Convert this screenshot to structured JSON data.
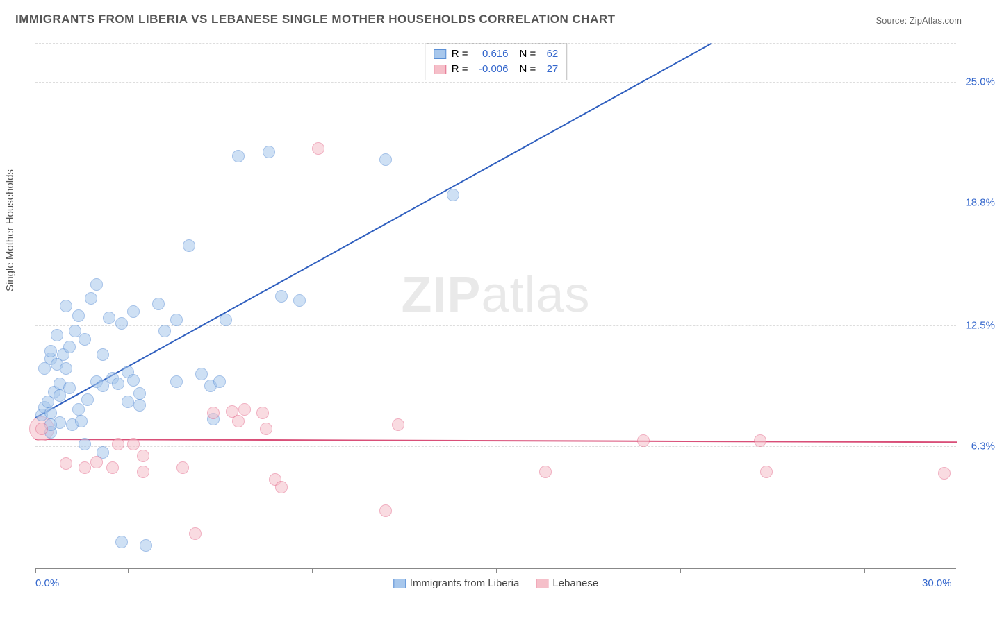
{
  "title": "IMMIGRANTS FROM LIBERIA VS LEBANESE SINGLE MOTHER HOUSEHOLDS CORRELATION CHART",
  "source_prefix": "Source: ",
  "source_name": "ZipAtlas.com",
  "watermark_a": "ZIP",
  "watermark_b": "atlas",
  "chart": {
    "type": "scatter",
    "ylabel": "Single Mother Households",
    "xlim": [
      0,
      30
    ],
    "ylim": [
      0,
      27
    ],
    "xticks_minor": [
      0,
      3,
      6,
      9,
      12,
      15,
      18,
      21,
      24,
      27,
      30
    ],
    "xtick_labels": [
      {
        "x": 0,
        "label": "0.0%"
      },
      {
        "x": 30,
        "label": "30.0%"
      }
    ],
    "ytick_labels": [
      {
        "y": 6.3,
        "label": "6.3%"
      },
      {
        "y": 12.5,
        "label": "12.5%"
      },
      {
        "y": 18.8,
        "label": "18.8%"
      },
      {
        "y": 25.0,
        "label": "25.0%"
      }
    ],
    "grid_y": [
      6.3,
      12.5,
      18.8,
      25.0,
      27
    ],
    "background_color": "#ffffff",
    "grid_color": "#dddddd",
    "series": [
      {
        "name": "Immigrants from Liberia",
        "color_fill": "#a7c7ec",
        "color_stroke": "#5a8fd6",
        "fill_opacity": 0.55,
        "marker_radius": 9,
        "r_label": "R =",
        "r_value": "0.616",
        "n_label": "N =",
        "n_value": "62",
        "trend": {
          "x1": 0,
          "y1": 7.8,
          "x2": 22,
          "y2": 27,
          "color": "#2f5fbf",
          "width": 2
        },
        "points": [
          [
            0.2,
            7.9
          ],
          [
            0.3,
            8.3
          ],
          [
            0.5,
            8.0
          ],
          [
            0.4,
            8.6
          ],
          [
            0.6,
            9.1
          ],
          [
            0.8,
            8.9
          ],
          [
            0.3,
            10.3
          ],
          [
            0.5,
            10.8
          ],
          [
            0.7,
            10.5
          ],
          [
            0.9,
            11.0
          ],
          [
            1.0,
            10.3
          ],
          [
            0.5,
            7.0
          ],
          [
            0.8,
            7.5
          ],
          [
            1.2,
            7.4
          ],
          [
            1.5,
            7.6
          ],
          [
            1.4,
            8.2
          ],
          [
            1.7,
            8.7
          ],
          [
            1.1,
            11.4
          ],
          [
            1.3,
            12.2
          ],
          [
            1.6,
            11.8
          ],
          [
            2.0,
            9.6
          ],
          [
            2.2,
            9.4
          ],
          [
            2.5,
            9.8
          ],
          [
            1.8,
            13.9
          ],
          [
            2.0,
            14.6
          ],
          [
            2.7,
            9.5
          ],
          [
            3.0,
            10.1
          ],
          [
            3.2,
            9.7
          ],
          [
            3.4,
            9.0
          ],
          [
            2.4,
            12.9
          ],
          [
            2.8,
            12.6
          ],
          [
            3.2,
            13.2
          ],
          [
            4.0,
            13.6
          ],
          [
            4.2,
            12.2
          ],
          [
            3.0,
            8.6
          ],
          [
            3.4,
            8.4
          ],
          [
            4.6,
            9.6
          ],
          [
            5.4,
            10.0
          ],
          [
            5.7,
            9.4
          ],
          [
            6.0,
            9.6
          ],
          [
            4.6,
            12.8
          ],
          [
            5.8,
            7.7
          ],
          [
            6.2,
            12.8
          ],
          [
            2.8,
            1.4
          ],
          [
            3.6,
            1.2
          ],
          [
            5.0,
            16.6
          ],
          [
            6.6,
            21.2
          ],
          [
            7.6,
            21.4
          ],
          [
            8.0,
            14.0
          ],
          [
            8.6,
            13.8
          ],
          [
            11.4,
            21.0
          ],
          [
            13.6,
            19.2
          ],
          [
            0.5,
            7.4
          ],
          [
            0.8,
            9.5
          ],
          [
            1.1,
            9.3
          ],
          [
            1.4,
            13.0
          ],
          [
            2.2,
            11.0
          ],
          [
            0.5,
            11.2
          ],
          [
            0.7,
            12.0
          ],
          [
            1.0,
            13.5
          ],
          [
            1.6,
            6.4
          ],
          [
            2.2,
            6.0
          ]
        ]
      },
      {
        "name": "Lebanese",
        "color_fill": "#f5bfc9",
        "color_stroke": "#e56f8f",
        "fill_opacity": 0.55,
        "marker_radius": 9,
        "r_label": "R =",
        "r_value": "-0.006",
        "n_label": "N =",
        "n_value": "27",
        "trend": {
          "x1": 0,
          "y1": 6.7,
          "x2": 30,
          "y2": 6.55,
          "color": "#d94f78",
          "width": 2
        },
        "points": [
          [
            0.2,
            7.2
          ],
          [
            1.0,
            5.4
          ],
          [
            1.6,
            5.2
          ],
          [
            2.0,
            5.5
          ],
          [
            2.5,
            5.2
          ],
          [
            2.7,
            6.4
          ],
          [
            3.2,
            6.4
          ],
          [
            3.5,
            5.8
          ],
          [
            3.5,
            5.0
          ],
          [
            4.8,
            5.2
          ],
          [
            5.2,
            1.8
          ],
          [
            5.8,
            8.0
          ],
          [
            6.4,
            8.1
          ],
          [
            6.6,
            7.6
          ],
          [
            6.8,
            8.2
          ],
          [
            7.4,
            8.0
          ],
          [
            7.5,
            7.2
          ],
          [
            7.8,
            4.6
          ],
          [
            8.0,
            4.2
          ],
          [
            9.2,
            21.6
          ],
          [
            11.8,
            7.4
          ],
          [
            11.4,
            3.0
          ],
          [
            16.6,
            5.0
          ],
          [
            19.8,
            6.6
          ],
          [
            23.6,
            6.6
          ],
          [
            23.8,
            5.0
          ],
          [
            29.6,
            4.9
          ]
        ],
        "big_point": {
          "x": 0.2,
          "y": 7.2,
          "r": 18
        }
      }
    ]
  },
  "legend_bottom": [
    {
      "label": "Immigrants from Liberia",
      "fill": "#a7c7ec",
      "stroke": "#5a8fd6"
    },
    {
      "label": "Lebanese",
      "fill": "#f5bfc9",
      "stroke": "#e56f8f"
    }
  ]
}
